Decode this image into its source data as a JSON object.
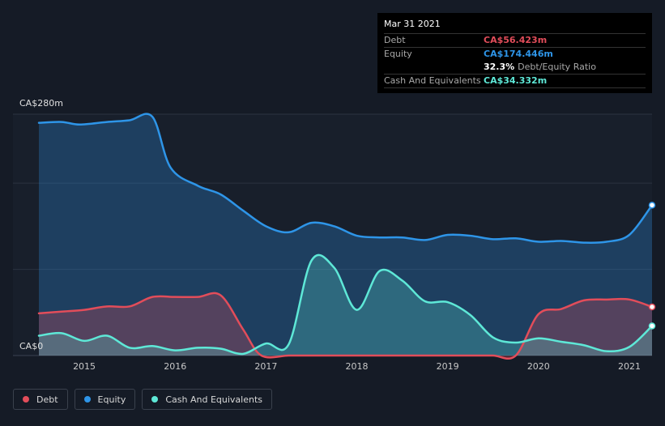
{
  "chart_data": {
    "type": "area",
    "x_range": [
      2014.5,
      2021.25
    ],
    "ylim": [
      0,
      280
    ],
    "y_unit": "CA$m",
    "y_ticks": [
      {
        "value": 280,
        "label": "CA$280m"
      },
      {
        "value": 0,
        "label": "CA$0"
      }
    ],
    "x_ticks": [
      {
        "value": 2015,
        "label": "2015"
      },
      {
        "value": 2016,
        "label": "2016"
      },
      {
        "value": 2017,
        "label": "2017"
      },
      {
        "value": 2018,
        "label": "2018"
      },
      {
        "value": 2019,
        "label": "2019"
      },
      {
        "value": 2020,
        "label": "2020"
      },
      {
        "value": 2021,
        "label": "2021"
      }
    ],
    "series": [
      {
        "name": "Equity",
        "color": "#2e95e8",
        "points": [
          [
            2014.5,
            270
          ],
          [
            2014.75,
            271
          ],
          [
            2014.95,
            268
          ],
          [
            2015.25,
            271
          ],
          [
            2015.5,
            273
          ],
          [
            2015.75,
            277
          ],
          [
            2015.95,
            218
          ],
          [
            2016.25,
            197
          ],
          [
            2016.5,
            187
          ],
          [
            2016.75,
            168
          ],
          [
            2017.0,
            150
          ],
          [
            2017.25,
            143
          ],
          [
            2017.5,
            154
          ],
          [
            2017.75,
            150
          ],
          [
            2018.0,
            139
          ],
          [
            2018.25,
            137
          ],
          [
            2018.5,
            137
          ],
          [
            2018.75,
            134
          ],
          [
            2019.0,
            140
          ],
          [
            2019.25,
            139
          ],
          [
            2019.5,
            135
          ],
          [
            2019.75,
            136
          ],
          [
            2020.0,
            132
          ],
          [
            2020.25,
            133
          ],
          [
            2020.5,
            131
          ],
          [
            2020.75,
            132
          ],
          [
            2021.0,
            140
          ],
          [
            2021.25,
            174.446
          ]
        ]
      },
      {
        "name": "Debt",
        "color": "#e24d5a",
        "points": [
          [
            2014.5,
            49
          ],
          [
            2014.75,
            51
          ],
          [
            2015.0,
            53
          ],
          [
            2015.25,
            57
          ],
          [
            2015.5,
            57
          ],
          [
            2015.75,
            68
          ],
          [
            2016.0,
            68
          ],
          [
            2016.25,
            68
          ],
          [
            2016.5,
            70
          ],
          [
            2016.75,
            30
          ],
          [
            2016.95,
            0
          ],
          [
            2017.25,
            0
          ],
          [
            2017.5,
            0
          ],
          [
            2017.75,
            0
          ],
          [
            2018.0,
            0
          ],
          [
            2018.25,
            0
          ],
          [
            2018.5,
            0
          ],
          [
            2018.75,
            0
          ],
          [
            2019.0,
            0
          ],
          [
            2019.25,
            0
          ],
          [
            2019.5,
            0
          ],
          [
            2019.75,
            0
          ],
          [
            2020.0,
            48
          ],
          [
            2020.25,
            54
          ],
          [
            2020.5,
            64
          ],
          [
            2020.75,
            65
          ],
          [
            2021.0,
            65
          ],
          [
            2021.25,
            56.423
          ]
        ]
      },
      {
        "name": "Cash And Equivalents",
        "color": "#5ee8d7",
        "points": [
          [
            2014.5,
            23
          ],
          [
            2014.75,
            26
          ],
          [
            2015.0,
            17
          ],
          [
            2015.25,
            23
          ],
          [
            2015.5,
            9
          ],
          [
            2015.75,
            11
          ],
          [
            2016.0,
            6
          ],
          [
            2016.25,
            9
          ],
          [
            2016.5,
            8
          ],
          [
            2016.75,
            2
          ],
          [
            2017.0,
            14
          ],
          [
            2017.25,
            13
          ],
          [
            2017.5,
            110
          ],
          [
            2017.75,
            102
          ],
          [
            2018.0,
            53
          ],
          [
            2018.25,
            98
          ],
          [
            2018.5,
            87
          ],
          [
            2018.75,
            63
          ],
          [
            2019.0,
            62
          ],
          [
            2019.25,
            47
          ],
          [
            2019.5,
            21
          ],
          [
            2019.75,
            15
          ],
          [
            2020.0,
            20
          ],
          [
            2020.25,
            16
          ],
          [
            2020.5,
            12
          ],
          [
            2020.75,
            5
          ],
          [
            2021.0,
            10
          ],
          [
            2021.25,
            34.332
          ]
        ]
      }
    ],
    "legend": [
      "Debt",
      "Equity",
      "Cash And Equivalents"
    ],
    "legend_position": "bottom-left",
    "grid": true
  },
  "tooltip": {
    "date": "Mar 31 2021",
    "debt_label": "Debt",
    "debt_value": "CA$56.423m",
    "equity_label": "Equity",
    "equity_value": "CA$174.446m",
    "ratio_value": "32.3%",
    "ratio_label": "Debt/Equity Ratio",
    "cash_label": "Cash And Equivalents",
    "cash_value": "CA$34.332m"
  },
  "colors": {
    "debt": "#e24d5a",
    "equity": "#2e95e8",
    "cash": "#5ee8d7",
    "background": "#151b26"
  }
}
